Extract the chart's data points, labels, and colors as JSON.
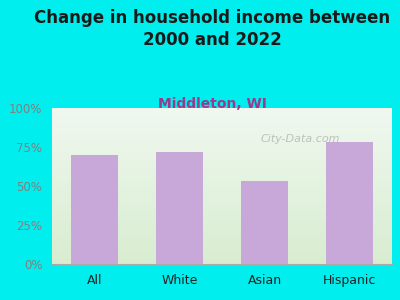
{
  "categories": [
    "All",
    "White",
    "Asian",
    "Hispanic"
  ],
  "values": [
    70,
    72,
    53,
    78
  ],
  "bar_color": "#C8A8D8",
  "title": "Change in household income between\n2000 and 2022",
  "subtitle": "Middleton, WI",
  "title_fontsize": 12,
  "subtitle_fontsize": 10,
  "ylabel_ticks": [
    0,
    25,
    50,
    75,
    100
  ],
  "ylim": [
    0,
    100
  ],
  "bg_color": "#00EEEE",
  "plot_bg_top": "#F0F8F0",
  "plot_bg_bottom": "#D8EDD0",
  "watermark": "City-Data.com",
  "title_color": "#1a1a1a",
  "subtitle_color": "#9B3A8A",
  "tick_color": "#808080",
  "watermark_color": "#aaaaaa"
}
